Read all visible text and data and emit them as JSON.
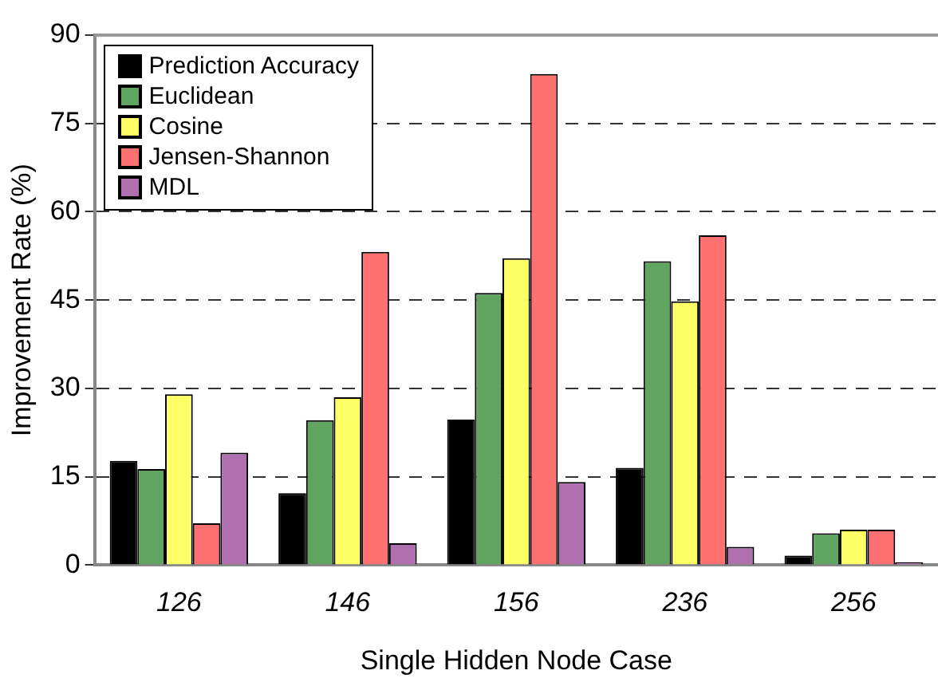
{
  "chart_data": {
    "type": "bar",
    "xlabel": "Single Hidden Node Case",
    "ylabel": "Improvement Rate (%)",
    "categories": [
      "126",
      "146",
      "156",
      "236",
      "256"
    ],
    "series": [
      {
        "name": "Prediction Accuracy",
        "color": "#000000",
        "values": [
          17.7,
          12.2,
          24.7,
          16.5,
          1.6
        ]
      },
      {
        "name": "Euclidean",
        "color": "#5fa55f",
        "values": [
          16.3,
          24.6,
          46.2,
          51.6,
          5.4
        ]
      },
      {
        "name": "Cosine",
        "color": "#ffff66",
        "values": [
          29.0,
          28.5,
          52.1,
          44.8,
          6.0
        ]
      },
      {
        "name": "Jensen-Shannon",
        "color": "#ff7070",
        "values": [
          7.1,
          53.2,
          83.4,
          56.0,
          6.0
        ]
      },
      {
        "name": "MDL",
        "color": "#b070b0",
        "values": [
          19.1,
          3.7,
          14.1,
          3.1,
          0.5
        ]
      }
    ],
    "ylim": [
      0,
      90
    ],
    "yticks": [
      0,
      15,
      30,
      45,
      60,
      75,
      90
    ],
    "grid": "y",
    "legend": "top left"
  }
}
